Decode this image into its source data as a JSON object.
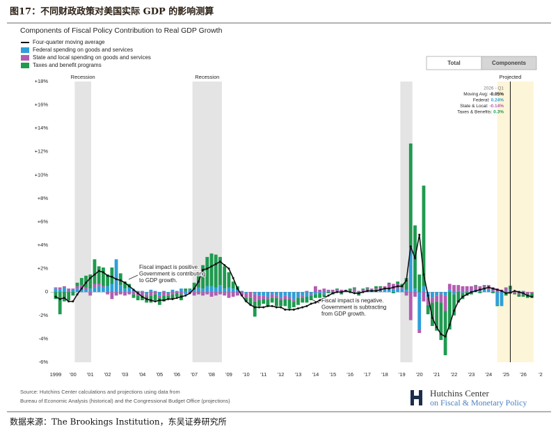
{
  "header": {
    "title": "图17：不同财政政策对美国实际 GDP 的影响测算"
  },
  "chart_data": {
    "type": "bar",
    "stacked": true,
    "title": "Components of Fiscal Policy Contribution to Real GDP Growth",
    "x": [
      1999,
      1999.25,
      1999.5,
      1999.75,
      2000,
      2000.25,
      2000.5,
      2000.75,
      2001,
      2001.25,
      2001.5,
      2001.75,
      2002,
      2002.25,
      2002.5,
      2002.75,
      2003,
      2003.25,
      2003.5,
      2003.75,
      2004,
      2004.25,
      2004.5,
      2004.75,
      2005,
      2005.25,
      2005.5,
      2005.75,
      2006,
      2006.25,
      2006.5,
      2006.75,
      2007,
      2007.25,
      2007.5,
      2007.75,
      2008,
      2008.25,
      2008.5,
      2008.75,
      2009,
      2009.25,
      2009.5,
      2009.75,
      2010,
      2010.25,
      2010.5,
      2010.75,
      2011,
      2011.25,
      2011.5,
      2011.75,
      2012,
      2012.25,
      2012.5,
      2012.75,
      2013,
      2013.25,
      2013.5,
      2013.75,
      2014,
      2014.25,
      2014.5,
      2014.75,
      2015,
      2015.25,
      2015.5,
      2015.75,
      2016,
      2016.25,
      2016.5,
      2016.75,
      2017,
      2017.25,
      2017.5,
      2017.75,
      2018,
      2018.25,
      2018.5,
      2018.75,
      2019,
      2019.25,
      2019.5,
      2019.75,
      2020,
      2020.25,
      2020.5,
      2020.75,
      2021,
      2021.25,
      2021.5,
      2021.75,
      2022,
      2022.25,
      2022.5,
      2022.75,
      2023,
      2023.25,
      2023.5,
      2023.75,
      2024,
      2024.25,
      2024.5,
      2024.75,
      2025,
      2025.25,
      2025.5,
      2025.75,
      2026,
      2026.25,
      2026.5
    ],
    "xlim": [
      1998.7,
      2027
    ],
    "xticks": [
      1999,
      {
        "value": 2000,
        "label": "'00"
      },
      {
        "value": 2001,
        "label": "'01"
      },
      {
        "value": 2002,
        "label": "'02"
      },
      {
        "value": 2003,
        "label": "'03"
      },
      {
        "value": 2004,
        "label": "'04"
      },
      {
        "value": 2005,
        "label": "'05"
      },
      {
        "value": 2006,
        "label": "'06"
      },
      {
        "value": 2007,
        "label": "'07"
      },
      {
        "value": 2008,
        "label": "'08"
      },
      {
        "value": 2009,
        "label": "'09"
      },
      {
        "value": 2010,
        "label": "'10"
      },
      {
        "value": 2011,
        "label": "'11"
      },
      {
        "value": 2012,
        "label": "'12"
      },
      {
        "value": 2013,
        "label": "'13"
      },
      {
        "value": 2014,
        "label": "'14"
      },
      {
        "value": 2015,
        "label": "'15"
      },
      {
        "value": 2016,
        "label": "'16"
      },
      {
        "value": 2017,
        "label": "'17"
      },
      {
        "value": 2018,
        "label": "'18"
      },
      {
        "value": 2019,
        "label": "'19"
      },
      {
        "value": 2020,
        "label": "'20"
      },
      {
        "value": 2021,
        "label": "'21"
      },
      {
        "value": 2022,
        "label": "'22"
      },
      {
        "value": 2023,
        "label": "'23"
      },
      {
        "value": 2024,
        "label": "'24"
      },
      {
        "value": 2025,
        "label": "'25"
      },
      {
        "value": 2026,
        "label": "'26"
      },
      {
        "value": 2027,
        "label": "'2"
      }
    ],
    "ylim": [
      -6,
      18
    ],
    "yticks": [
      {
        "value": -6,
        "label": "-6%"
      },
      {
        "value": -4,
        "label": "-4%"
      },
      {
        "value": -2,
        "label": "-2%"
      },
      0,
      {
        "value": 2,
        "label": "+2%"
      },
      {
        "value": 4,
        "label": "+4%"
      },
      {
        "value": 6,
        "label": "+6%"
      },
      {
        "value": 8,
        "label": "+8%"
      },
      {
        "value": 10,
        "label": "+10%"
      },
      {
        "value": 12,
        "label": "+12%"
      },
      {
        "value": 14,
        "label": "+14%"
      },
      {
        "value": 16,
        "label": "+16%"
      },
      {
        "value": 18,
        "label": "+18%"
      }
    ],
    "grid": false,
    "series": [
      {
        "name": "Four-quarter moving average",
        "type": "line",
        "color": "#111111",
        "values": [
          -0.4,
          -0.6,
          -0.5,
          -0.8,
          -0.8,
          -0.2,
          0.3,
          0.8,
          1.2,
          1.5,
          1.8,
          1.7,
          1.4,
          1.3,
          1.1,
          1.0,
          0.8,
          0.5,
          0.2,
          -0.1,
          -0.4,
          -0.6,
          -0.7,
          -0.8,
          -0.7,
          -0.7,
          -0.6,
          -0.6,
          -0.5,
          -0.4,
          -0.3,
          -0.1,
          0.3,
          0.9,
          1.9,
          2.0,
          2.2,
          2.4,
          2.6,
          2.3,
          2.0,
          1.2,
          0.3,
          -0.3,
          -0.8,
          -1.1,
          -1.3,
          -1.3,
          -1.3,
          -1.2,
          -1.2,
          -1.3,
          -1.3,
          -1.5,
          -1.5,
          -1.5,
          -1.4,
          -1.3,
          -1.2,
          -1.0,
          -0.9,
          -0.7,
          -0.5,
          -0.3,
          -0.1,
          0.0,
          0.0,
          0.1,
          0.0,
          -0.1,
          -0.1,
          0.0,
          0.1,
          0.1,
          0.1,
          0.2,
          0.3,
          0.3,
          0.4,
          0.5,
          0.5,
          1.0,
          3.9,
          2.9,
          4.9,
          1.5,
          -0.3,
          -2.2,
          -3.0,
          -3.6,
          -3.8,
          -2.8,
          -1.6,
          -0.8,
          -0.4,
          -0.2,
          0.0,
          0.1,
          0.2,
          0.3,
          0.4,
          0.3,
          0.2,
          0.1,
          -0.1,
          -0.05,
          0.1,
          0.0,
          -0.1,
          -0.3,
          -0.4
        ]
      },
      {
        "name": "Federal spending on goods and services",
        "color": "#2e9fd9",
        "values": [
          0.3,
          0.2,
          0.4,
          0.1,
          0.2,
          0.3,
          0.3,
          0.2,
          0.3,
          0.4,
          0.5,
          0.4,
          0.5,
          0.7,
          2.8,
          0.6,
          0.3,
          0.4,
          0.2,
          0.1,
          0.1,
          -0.2,
          0.2,
          0.1,
          -0.3,
          0.1,
          -0.1,
          0.2,
          0.1,
          0.3,
          -0.2,
          0.2,
          0.2,
          0.4,
          0.3,
          0.5,
          0.5,
          0.4,
          0.6,
          0.3,
          0.4,
          0.3,
          0.2,
          0.1,
          -0.1,
          0.0,
          -0.2,
          -0.3,
          -0.3,
          -0.4,
          -0.2,
          -0.3,
          -0.5,
          -0.3,
          -0.4,
          -0.6,
          -0.4,
          -0.3,
          -0.4,
          -0.2,
          -0.2,
          -0.1,
          -0.2,
          0.1,
          -0.1,
          0.1,
          0.0,
          0.1,
          0.0,
          0.1,
          -0.1,
          0.1,
          0.1,
          0.2,
          0.1,
          0.2,
          0.2,
          0.3,
          0.2,
          0.3,
          0.3,
          0.2,
          3.8,
          0.3,
          -3.2,
          0.5,
          -0.5,
          -0.5,
          -0.3,
          -0.2,
          -0.3,
          0.2,
          -0.2,
          0.1,
          -0.1,
          0.1,
          0.1,
          0.2,
          0.1,
          0.2,
          0.2,
          0.1,
          -1.1,
          -1.2,
          0.1,
          0.24,
          0.1,
          0.1,
          0.1,
          0.0,
          0.0
        ]
      },
      {
        "name": "State and local spending on goods and services",
        "color": "#b35db1",
        "values": [
          0.1,
          0.2,
          0.1,
          0.2,
          0.1,
          0.2,
          0.3,
          0.2,
          -0.3,
          0.3,
          0.2,
          0.1,
          -0.2,
          -0.6,
          -0.3,
          -0.2,
          -0.3,
          -0.2,
          -0.2,
          -0.3,
          -0.3,
          -0.2,
          -0.3,
          -0.2,
          -0.2,
          -0.3,
          -0.2,
          -0.2,
          -0.1,
          -0.2,
          0.1,
          -0.1,
          -0.3,
          -0.2,
          -0.3,
          -0.2,
          -0.4,
          -0.3,
          -0.2,
          -0.3,
          -0.5,
          -0.4,
          -0.3,
          -0.3,
          -0.4,
          -0.5,
          -0.6,
          -0.4,
          -0.3,
          -0.2,
          -0.3,
          -0.2,
          -0.2,
          -0.3,
          -0.2,
          -0.2,
          -0.1,
          -0.2,
          0.1,
          -0.1,
          0.5,
          0.2,
          0.3,
          0.1,
          0.2,
          0.1,
          0.2,
          0.1,
          0.1,
          0.2,
          0.1,
          0.1,
          0.2,
          0.1,
          0.2,
          0.2,
          0.3,
          0.4,
          0.5,
          0.4,
          0.1,
          -0.3,
          -2.4,
          -0.4,
          -0.3,
          -0.8,
          -0.6,
          -0.4,
          -0.5,
          -0.7,
          -1.3,
          0.5,
          0.6,
          0.5,
          0.5,
          0.4,
          0.4,
          0.3,
          0.4,
          0.3,
          0.4,
          0.3,
          0.3,
          0.2,
          0.3,
          -0.14,
          -0.1,
          -0.2,
          -0.2,
          -0.2,
          -0.1
        ]
      },
      {
        "name": "Taxes and benefit programs",
        "color": "#1f9a4f",
        "values": [
          -0.6,
          -1.9,
          -0.8,
          -0.7,
          -0.3,
          0.3,
          0.6,
          1.0,
          1.2,
          2.1,
          1.5,
          1.6,
          1.0,
          1.4,
          0.0,
          1.0,
          0.6,
          0.3,
          -0.3,
          -0.4,
          -0.4,
          -0.5,
          -0.6,
          -0.5,
          -0.6,
          -0.5,
          -0.3,
          -0.4,
          -0.3,
          -0.5,
          0.2,
          0.1,
          0.6,
          1.3,
          2.0,
          2.5,
          2.8,
          2.8,
          2.4,
          1.9,
          1.3,
          0.6,
          0.3,
          0.0,
          -0.3,
          -0.6,
          -1.3,
          -0.5,
          -0.4,
          -0.6,
          -0.4,
          -0.7,
          -0.5,
          -0.6,
          -0.8,
          -0.5,
          -0.6,
          -0.4,
          -0.5,
          -0.4,
          -0.3,
          -0.4,
          -0.2,
          -0.1,
          -0.1,
          0.1,
          -0.2,
          0.0,
          0.2,
          0.1,
          -0.2,
          0.1,
          0.1,
          0.0,
          0.2,
          0.1,
          0.0,
          0.1,
          -0.1,
          0.2,
          0.3,
          1.0,
          8.9,
          5.4,
          1.5,
          8.6,
          -0.8,
          -2.0,
          -2.5,
          -3.2,
          -3.8,
          -3.2,
          -1.8,
          -0.9,
          -0.5,
          -0.3,
          -0.2,
          0.1,
          -0.1,
          0.1,
          0.0,
          -0.1,
          -0.1,
          0.0,
          -0.3,
          0.3,
          -0.1,
          -0.2,
          -0.2,
          -0.3,
          -0.4
        ]
      }
    ],
    "recessions": [
      {
        "label": "Recession",
        "range": [
          2000.1,
          2001.05
        ]
      },
      {
        "label": "Recession",
        "range": [
          2006.9,
          2008.6
        ]
      },
      {
        "range": [
          2018.9,
          2019.6
        ]
      }
    ],
    "projected": {
      "label": "Projected",
      "range": [
        2024.5,
        2026.6
      ],
      "marker": 2025.25
    },
    "tooltip": {
      "title": "2026 - Q1",
      "rows": [
        {
          "label": "Moving Avg:",
          "value": "-0.05%"
        },
        {
          "label": "Federal:",
          "value": "0.24%"
        },
        {
          "label": "State & Local:",
          "value": "-0.14%"
        },
        {
          "label": "Taxes & Benefits:",
          "value": "0.3%"
        }
      ]
    },
    "annotations": [
      {
        "lines": [
          "Fiscal impact is positive.",
          "Government is contributing",
          "to GDP growth."
        ]
      },
      {
        "lines": [
          "Fiscal impact is negative.",
          "Government is subtracting",
          "from GDP growth."
        ]
      }
    ]
  },
  "buttons": [
    "Total",
    "Components"
  ],
  "source": [
    "Source: Hutchins Center calculations and projections using data from",
    "Bureau of Economic Analysis (historical) and the Congressional Budget Office (projections)"
  ],
  "logo": {
    "name": "Hutchins Center",
    "subtitle": "on Fiscal & Monetary Policy"
  },
  "footer": "数据来源：The Brookings Institution，东吴证券研究所"
}
